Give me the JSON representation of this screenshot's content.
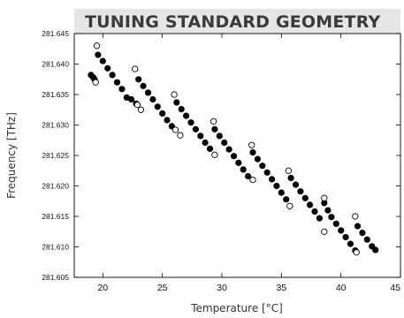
{
  "chart_data": {
    "type": "scatter",
    "title": "TUNING STANDARD GEOMETRY",
    "xlabel": "Temperature [°C]",
    "ylabel": "Frequency [THz]",
    "xlim": [
      17.6,
      45
    ],
    "ylim": [
      281.605,
      281.645
    ],
    "x_ticks": [
      20,
      25,
      30,
      35,
      40,
      45
    ],
    "x_tick_labels": [
      "20",
      "25",
      "30",
      "35",
      "40",
      "45"
    ],
    "y_ticks": [
      281.605,
      281.61,
      281.615,
      281.62,
      281.625,
      281.63,
      281.635,
      281.64,
      281.645
    ],
    "y_tick_labels": [
      "281.605",
      "281.610",
      "281.615",
      "281.620",
      "281.625",
      "281.630",
      "281.635",
      "281.640",
      "281.645"
    ],
    "grid": false,
    "legend": "none",
    "series": [
      {
        "marker": "filled-circle",
        "color": "#000000",
        "points": [
          [
            19.0,
            281.6382
          ],
          [
            19.2,
            281.6378
          ],
          [
            19.3,
            281.6375
          ],
          [
            19.6,
            281.6415
          ],
          [
            20.0,
            281.6405
          ],
          [
            20.4,
            281.6393
          ],
          [
            20.8,
            281.6382
          ],
          [
            21.2,
            281.637
          ],
          [
            21.6,
            281.6359
          ],
          [
            22.0,
            281.6345
          ],
          [
            22.4,
            281.6342
          ],
          [
            22.8,
            281.6335
          ],
          [
            23.0,
            281.6375
          ],
          [
            23.4,
            281.6364
          ],
          [
            23.8,
            281.6353
          ],
          [
            24.2,
            281.6342
          ],
          [
            24.6,
            281.633
          ],
          [
            25.0,
            281.6319
          ],
          [
            25.4,
            281.6308
          ],
          [
            25.8,
            281.6298
          ],
          [
            26.2,
            281.6337
          ],
          [
            26.6,
            281.6326
          ],
          [
            27.0,
            281.6315
          ],
          [
            27.4,
            281.6304
          ],
          [
            27.8,
            281.6293
          ],
          [
            28.2,
            281.6282
          ],
          [
            28.6,
            281.6271
          ],
          [
            29.0,
            281.6261
          ],
          [
            29.4,
            281.6293
          ],
          [
            29.8,
            281.6282
          ],
          [
            30.2,
            281.6271
          ],
          [
            30.6,
            281.626
          ],
          [
            31.0,
            281.6249
          ],
          [
            31.4,
            281.6238
          ],
          [
            31.8,
            281.6227
          ],
          [
            32.2,
            281.6216
          ],
          [
            32.6,
            281.6255
          ],
          [
            33.0,
            281.6244
          ],
          [
            33.4,
            281.6233
          ],
          [
            33.8,
            281.6222
          ],
          [
            34.2,
            281.6211
          ],
          [
            34.6,
            281.62
          ],
          [
            35.0,
            281.6189
          ],
          [
            35.4,
            281.6178
          ],
          [
            35.8,
            281.6213
          ],
          [
            36.2,
            281.6202
          ],
          [
            36.6,
            281.6191
          ],
          [
            37.0,
            281.618
          ],
          [
            37.4,
            281.6169
          ],
          [
            37.8,
            281.6158
          ],
          [
            38.2,
            281.6147
          ],
          [
            38.6,
            281.6172
          ],
          [
            38.9,
            281.616
          ],
          [
            39.2,
            281.6149
          ],
          [
            39.6,
            281.6138
          ],
          [
            40.0,
            281.6127
          ],
          [
            40.4,
            281.6116
          ],
          [
            40.8,
            281.6105
          ],
          [
            41.2,
            281.6094
          ],
          [
            41.4,
            281.6134
          ],
          [
            41.8,
            281.6123
          ],
          [
            42.2,
            281.6112
          ],
          [
            42.6,
            281.6101
          ],
          [
            42.9,
            281.6095
          ]
        ]
      },
      {
        "marker": "open-circle",
        "color": "#000000",
        "points": [
          [
            19.4,
            281.637
          ],
          [
            19.5,
            281.643
          ],
          [
            22.7,
            281.6392
          ],
          [
            22.9,
            281.6333
          ],
          [
            23.2,
            281.6325
          ],
          [
            26.0,
            281.635
          ],
          [
            26.1,
            281.6292
          ],
          [
            26.5,
            281.6283
          ],
          [
            29.3,
            281.6306
          ],
          [
            29.4,
            281.6251
          ],
          [
            32.5,
            281.6267
          ],
          [
            32.6,
            281.621
          ],
          [
            35.6,
            281.6225
          ],
          [
            35.7,
            281.6167
          ],
          [
            38.6,
            281.618
          ],
          [
            38.6,
            281.6125
          ],
          [
            41.2,
            281.615
          ],
          [
            41.3,
            281.6091
          ]
        ]
      }
    ]
  }
}
